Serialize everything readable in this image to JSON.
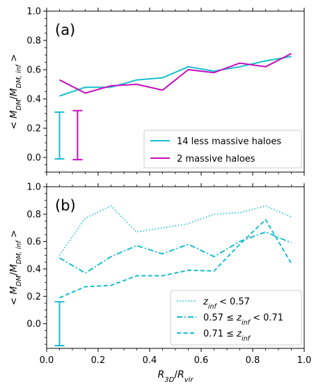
{
  "chart_data": [
    {
      "type": "line",
      "panel_label": "(a)",
      "ylabel": "< M_DM/M_DM,inf >",
      "xlabel": "",
      "xlim": [
        0.0,
        1.0
      ],
      "ylim": [
        -0.1,
        1.0
      ],
      "x_ticks": [
        "0.0",
        "0.2",
        "0.4",
        "0.6",
        "0.8",
        "1.0"
      ],
      "y_ticks": [
        "0.0",
        "0.2",
        "0.4",
        "0.6",
        "0.8",
        "1.0"
      ],
      "y_tick_values": [
        0.0,
        0.2,
        0.4,
        0.6,
        0.8,
        1.0
      ],
      "x_tick_labels_visible": false,
      "legend_position": "lower-right",
      "series": [
        {
          "name": "14 less massive haloes",
          "color": "#17becf",
          "linestyle": "solid",
          "x": [
            0.05,
            0.15,
            0.25,
            0.35,
            0.45,
            0.55,
            0.65,
            0.75,
            0.85,
            0.95
          ],
          "y": [
            0.42,
            0.48,
            0.48,
            0.53,
            0.545,
            0.62,
            0.59,
            0.62,
            0.66,
            0.69
          ]
        },
        {
          "name": "2 massive haloes",
          "color": "#c40fbd",
          "linestyle": "solid",
          "x": [
            0.05,
            0.15,
            0.25,
            0.35,
            0.45,
            0.55,
            0.65,
            0.75,
            0.85,
            0.95
          ],
          "y": [
            0.53,
            0.44,
            0.49,
            0.5,
            0.46,
            0.6,
            0.58,
            0.645,
            0.62,
            0.71
          ]
        }
      ],
      "error_bars": [
        {
          "x": 0.05,
          "y_low": -0.01,
          "y_high": 0.31,
          "color": "#17becf"
        },
        {
          "x": 0.12,
          "y_low": -0.015,
          "y_high": 0.32,
          "color": "#c40fbd"
        }
      ]
    },
    {
      "type": "line",
      "panel_label": "(b)",
      "ylabel": "< M_DM/M_DM,inf >",
      "xlabel": "R_3D/R_vir",
      "xlim": [
        0.0,
        1.0
      ],
      "ylim": [
        -0.18,
        1.0
      ],
      "x_ticks": [
        "0.0",
        "0.2",
        "0.4",
        "0.6",
        "0.8",
        "1.0"
      ],
      "y_ticks": [
        "0.0",
        "0.2",
        "0.4",
        "0.6",
        "0.8",
        "1.0"
      ],
      "y_tick_values": [
        0.0,
        0.2,
        0.4,
        0.6,
        0.8,
        1.0
      ],
      "x_tick_labels_visible": true,
      "legend_position": "lower-right",
      "series": [
        {
          "name": "z_inf < 0.57",
          "legend_parts": [
            "z",
            "inf",
            " < 0.57"
          ],
          "color": "#17becf",
          "linestyle": "dotted",
          "x": [
            0.05,
            0.15,
            0.25,
            0.35,
            0.45,
            0.55,
            0.65,
            0.75,
            0.85,
            0.95
          ],
          "y": [
            0.5,
            0.77,
            0.86,
            0.67,
            0.7,
            0.73,
            0.8,
            0.81,
            0.86,
            0.78
          ]
        },
        {
          "name": "0.57 ≤ z_inf < 0.71",
          "legend_parts": [
            "0.57 ≤ z",
            "inf",
            " < 0.71"
          ],
          "color": "#17becf",
          "linestyle": "dashdot",
          "x": [
            0.05,
            0.15,
            0.25,
            0.35,
            0.45,
            0.55,
            0.65,
            0.75,
            0.85,
            0.95
          ],
          "y": [
            0.48,
            0.37,
            0.49,
            0.57,
            0.51,
            0.58,
            0.49,
            0.6,
            0.67,
            0.59
          ]
        },
        {
          "name": "0.71 ≤ z_inf",
          "legend_parts": [
            "0.71 ≤ z",
            "inf",
            ""
          ],
          "color": "#17becf",
          "linestyle": "dashed",
          "x": [
            0.05,
            0.15,
            0.25,
            0.35,
            0.45,
            0.55,
            0.65,
            0.75,
            0.85,
            0.95
          ],
          "y": [
            0.19,
            0.27,
            0.28,
            0.35,
            0.35,
            0.39,
            0.385,
            0.58,
            0.76,
            0.44
          ]
        }
      ],
      "error_bars": [
        {
          "x": 0.05,
          "y_low": -0.16,
          "y_high": 0.16,
          "color": "#17becf"
        }
      ]
    }
  ]
}
